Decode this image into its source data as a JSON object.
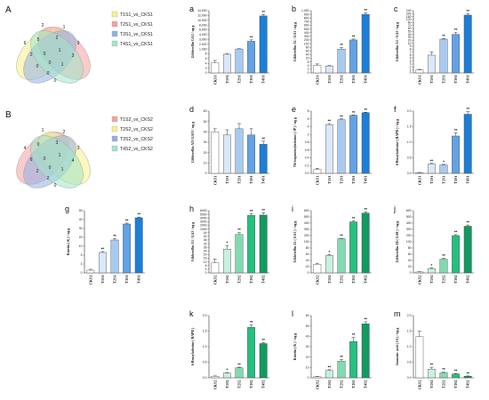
{
  "venns": [
    {
      "letter": "A",
      "numbers": [
        "2",
        "1",
        "6",
        "5",
        "2",
        "9",
        "2",
        "0",
        "1",
        "3",
        "0",
        "0",
        "1",
        "0",
        "0"
      ],
      "legend": [
        {
          "label": "T1S1_vs_CKS1",
          "color": "#f5f08a"
        },
        {
          "label": "T2S1_vs_CKS1",
          "color": "#f4a1a1"
        },
        {
          "label": "T3S1_vs_CKS1",
          "color": "#8fb0e6"
        },
        {
          "label": "T4S1_vs_CKS1",
          "color": "#9ee6c8"
        }
      ]
    },
    {
      "letter": "B",
      "numbers": [
        "1",
        "2",
        "4",
        "0",
        "3",
        "3",
        "6",
        "0",
        "1",
        "4",
        "2",
        "0",
        "1",
        "2",
        "0"
      ],
      "legend": [
        {
          "label": "T1S2_vs_CKS2",
          "color": "#f4a1a1"
        },
        {
          "label": "T2S2_vs_CKS2",
          "color": "#f5f08a"
        },
        {
          "label": "T3S2_vs_CKS2",
          "color": "#8fb0e6"
        },
        {
          "label": "T4S2_vs_CKS2",
          "color": "#9ee6c8"
        }
      ]
    }
  ],
  "chart_data": [
    {
      "letter": "a",
      "type": "bar",
      "ylabel": "Gibberellin GA3 / ng g",
      "categories": [
        "CKS1",
        "T1S1",
        "T2S1",
        "T3S1",
        "T4S1"
      ],
      "values": [
        4.2,
        7.8,
        1000,
        2600,
        11800
      ],
      "errors": [
        1.0,
        0.3,
        60,
        300,
        600
      ],
      "significance": [
        "",
        "",
        "",
        "**",
        "**"
      ],
      "ticks": [
        "0",
        "2",
        "4",
        "6",
        "8",
        "1,000",
        "2,000",
        "3,000",
        "4,000",
        "6,000",
        "8,000",
        "10,000",
        "12,000",
        "14,000"
      ],
      "colors": [
        "#ffffff",
        "#dbe8f8",
        "#a8caf0",
        "#62a2e8",
        "#1b7fd8"
      ]
    },
    {
      "letter": "b",
      "type": "bar",
      "ylabel": "Gibberellin A1 / GA1 / ng g",
      "categories": [
        "CKS1",
        "T1S1",
        "T2S1",
        "T3S1",
        "T4S1"
      ],
      "values": [
        4.1,
        3.8,
        70,
        200,
        900
      ],
      "errors": [
        0.8,
        0.2,
        8,
        25,
        40
      ],
      "significance": [
        "",
        "",
        "**",
        "**",
        "**"
      ],
      "ticks": [
        "0",
        "2",
        "4",
        "6",
        "20",
        "40",
        "60",
        "80",
        "100",
        "200",
        "300",
        "400",
        "500",
        "600",
        "700",
        "800",
        "900",
        "1,000"
      ],
      "colors": [
        "#ffffff",
        "#dbe8f8",
        "#a8caf0",
        "#62a2e8",
        "#1b7fd8"
      ]
    },
    {
      "letter": "c",
      "type": "bar",
      "ylabel": "Gibberellin A3 / GA3 / ng g",
      "categories": [
        "CKS1",
        "T1S1",
        "T2S1",
        "T3S1",
        "T4S1"
      ],
      "values": [
        1.0,
        6,
        24,
        40,
        180
      ],
      "errors": [
        0.2,
        1,
        2,
        6,
        20
      ],
      "significance": [
        "",
        "",
        "**",
        "**",
        "**"
      ],
      "ticks": [
        "0",
        "1",
        "2",
        "3",
        "4",
        "5",
        "6",
        "7",
        "8",
        "9",
        "10",
        "20",
        "30",
        "40",
        "50",
        "60",
        "70",
        "80",
        "120",
        "160",
        "200",
        "240"
      ],
      "colors": [
        "#ffffff",
        "#dbe8f8",
        "#a8caf0",
        "#62a2e8",
        "#1b7fd8"
      ]
    },
    {
      "letter": "d",
      "type": "bar",
      "ylabel": "Gibberellin A53 GA53 / ng g",
      "categories": [
        "CKS1",
        "T1S1",
        "T2S1",
        "T3S1",
        "T4S1"
      ],
      "values": [
        40,
        37,
        43,
        37,
        28
      ],
      "errors": [
        3,
        5,
        5,
        6,
        3
      ],
      "significance": [
        "",
        "",
        "",
        "",
        "**"
      ],
      "ticks": [
        "0",
        "10",
        "20",
        "30",
        "40",
        "50",
        "60"
      ],
      "colors": [
        "#ffffff",
        "#dbe8f8",
        "#a8caf0",
        "#62a2e8",
        "#1b7fd8"
      ]
    },
    {
      "letter": "e",
      "type": "bar",
      "ylabel": "N6-isopentenyladenine ( IP ) / ng g",
      "categories": [
        "CKS1",
        "T1S1",
        "T2S1",
        "T3S1",
        "T4S1"
      ],
      "values": [
        0.1,
        4.5,
        5.8,
        6.9,
        7.6
      ],
      "errors": [
        0.03,
        0.3,
        0.2,
        0.1,
        0.1
      ],
      "significance": [
        "",
        "**",
        "**",
        "**",
        "**"
      ],
      "ticks": [
        "0.0",
        "0.2",
        "0.4",
        "0.6",
        "0.8",
        "2",
        "4",
        "6",
        "8"
      ],
      "colors": [
        "#ffffff",
        "#dbe8f8",
        "#a8caf0",
        "#62a2e8",
        "#1b7fd8"
      ]
    },
    {
      "letter": "f",
      "type": "bar",
      "ylabel": "6-Benzyladenine ( BAPR ) / ng g",
      "categories": [
        "CKS1",
        "T1S1",
        "T2S1",
        "T3S1",
        "T4S1"
      ],
      "values": [
        0.02,
        0.3,
        0.27,
        1.2,
        1.9
      ],
      "errors": [
        0.01,
        0.02,
        0.02,
        0.1,
        0.08
      ],
      "significance": [
        "",
        "**",
        "*",
        "**",
        "**"
      ],
      "ticks": [
        "0.0",
        "0.5",
        "1.0",
        "1.5",
        "2.0"
      ],
      "colors": [
        "#ffffff",
        "#dbe8f8",
        "#a8caf0",
        "#62a2e8",
        "#1b7fd8"
      ]
    },
    {
      "letter": "g",
      "type": "bar",
      "ylabel": "Kinetin ( K ) / ng g",
      "categories": [
        "CKS1",
        "T1S1",
        "T2S1",
        "T3S1",
        "T4S1"
      ],
      "values": [
        0.3,
        6.5,
        17,
        35,
        42
      ],
      "errors": [
        0.1,
        0.5,
        1.5,
        1,
        0.8
      ],
      "significance": [
        "",
        "**",
        "**",
        "**",
        "**"
      ],
      "ticks": [
        "0",
        "1",
        "5",
        "10",
        "20",
        "30",
        "40",
        "50"
      ],
      "colors": [
        "#ffffff",
        "#dbe8f8",
        "#a8caf0",
        "#62a2e8",
        "#1b7fd8"
      ]
    },
    {
      "letter": "h",
      "type": "bar",
      "ylabel": "Gibberellin A3 / GA3 / ng g",
      "categories": [
        "CKS2",
        "T1S2",
        "T2S2",
        "T3S2",
        "T4S2"
      ],
      "values": [
        11,
        26,
        42,
        4700,
        4800
      ],
      "errors": [
        4,
        4,
        8,
        500,
        600
      ],
      "significance": [
        "",
        "*",
        "**",
        "**",
        "**"
      ],
      "ticks": [
        "0",
        "4",
        "8",
        "12",
        "16",
        "20",
        "24",
        "28",
        "32",
        "36",
        "40",
        "44",
        "1000",
        "2000",
        "3000",
        "4000",
        "5000",
        "6000"
      ],
      "colors": [
        "#ffffff",
        "#c8f0de",
        "#7fdcb0",
        "#26c07e",
        "#129a60"
      ]
    },
    {
      "letter": "i",
      "type": "bar",
      "ylabel": "Gibberellin A1 ( GA1 ) / ng g",
      "categories": [
        "CKS2",
        "T1S2",
        "T2S2",
        "T3S2",
        "T4S2"
      ],
      "values": [
        28,
        56,
        150,
        420,
        560
      ],
      "errors": [
        3,
        3,
        6,
        15,
        20
      ],
      "significance": [
        "",
        "*",
        "**",
        "**",
        "**"
      ],
      "ticks": [
        "0",
        "20",
        "40",
        "60",
        "80",
        "100",
        "200",
        "300",
        "400",
        "500",
        "600"
      ],
      "colors": [
        "#ffffff",
        "#c8f0de",
        "#7fdcb0",
        "#26c07e",
        "#129a60"
      ]
    },
    {
      "letter": "j",
      "type": "bar",
      "ylabel": "Gibberellin A8 ( GA8 ) / ng g",
      "categories": [
        "CKS2",
        "T1S2",
        "T2S2",
        "T3S2",
        "T4S2"
      ],
      "values": [
        3,
        14,
        44,
        200,
        350
      ],
      "errors": [
        1,
        2,
        3,
        15,
        20
      ],
      "significance": [
        "",
        "*",
        "**",
        "**",
        "**"
      ],
      "ticks": [
        "0",
        "20",
        "40",
        "60",
        "80",
        "100",
        "200",
        "300",
        "400",
        "500",
        "600"
      ],
      "colors": [
        "#ffffff",
        "#c8f0de",
        "#7fdcb0",
        "#26c07e",
        "#129a60"
      ]
    },
    {
      "letter": "k",
      "type": "bar",
      "ylabel": "6-Benzyladenine ( BAPR )",
      "categories": [
        "CKS2",
        "T1S2",
        "T2S2",
        "T3S2",
        "T4S2"
      ],
      "values": [
        0.05,
        0.15,
        0.32,
        1.62,
        1.1
      ],
      "errors": [
        0.01,
        0.02,
        0.02,
        0.08,
        0.03
      ],
      "significance": [
        "",
        "*",
        "**",
        "**",
        "**"
      ],
      "ticks": [
        "0.0",
        "0.5",
        "1.0",
        "1.5",
        "2.0"
      ],
      "colors": [
        "#ffffff",
        "#c8f0de",
        "#7fdcb0",
        "#26c07e",
        "#129a60"
      ]
    },
    {
      "letter": "l",
      "type": "bar",
      "ylabel": "Kinetin ( K ) / ng g",
      "categories": [
        "CKS2",
        "T1S2",
        "T2S2",
        "T3S2",
        "T4S2"
      ],
      "values": [
        1,
        7,
        16,
        35,
        52
      ],
      "errors": [
        0.3,
        0.8,
        1.5,
        4,
        2
      ],
      "significance": [
        "",
        "**",
        "**",
        "**",
        "**"
      ],
      "ticks": [
        "0",
        "10",
        "20",
        "30",
        "40",
        "50",
        "60"
      ],
      "colors": [
        "#ffffff",
        "#c8f0de",
        "#7fdcb0",
        "#26c07e",
        "#129a60"
      ]
    },
    {
      "letter": "m",
      "type": "bar",
      "ylabel": "Jasmonic acid ( JA ) / ng g",
      "categories": [
        "CKS2",
        "T1S2",
        "T2S2",
        "T3S2",
        "T4S2"
      ],
      "values": [
        1.32,
        0.28,
        0.16,
        0.12,
        0.05
      ],
      "errors": [
        0.18,
        0.06,
        0.02,
        0.02,
        0.01
      ],
      "significance": [
        "",
        "**",
        "**",
        "**",
        "**"
      ],
      "ticks": [
        "0.0",
        "0.5",
        "1.0",
        "1.5",
        "2.0"
      ],
      "colors": [
        "#ffffff",
        "#c8f0de",
        "#7fdcb0",
        "#26c07e",
        "#129a60"
      ]
    }
  ]
}
